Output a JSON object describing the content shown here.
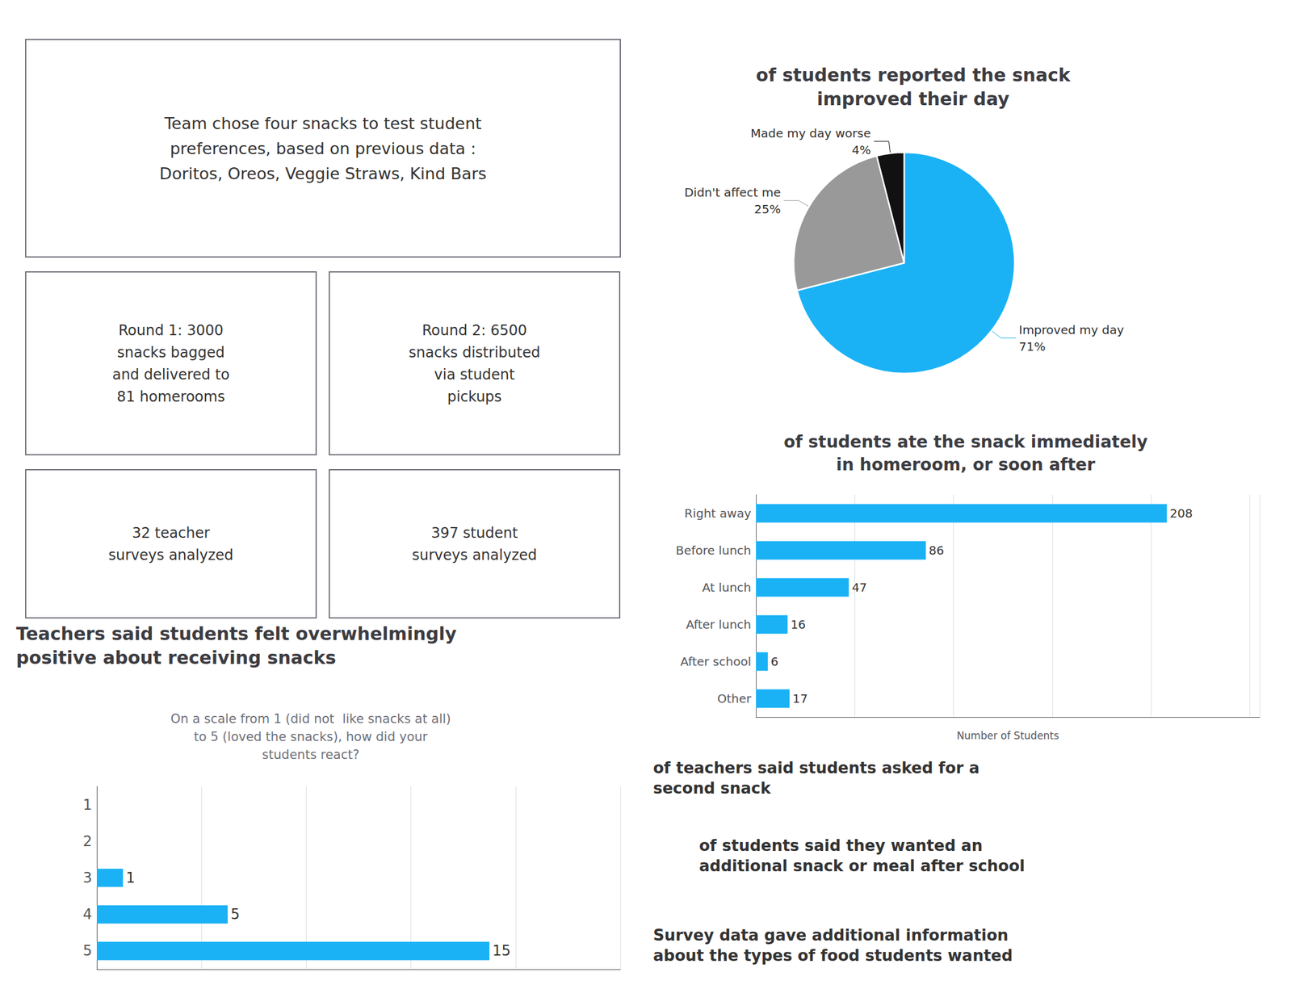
{
  "chart_data": [
    {
      "type": "bar",
      "orientation": "horizontal",
      "title": "Teachers said students felt overwhelmingly\npositive about receiving snacks",
      "subtitle": "On a scale from 1 (did not  like snacks at all)\nto 5 (loved the snacks), how did your\nstudents react?",
      "categories": [
        "5",
        "4",
        "3",
        "2",
        "1"
      ],
      "values": [
        15,
        5,
        1,
        0,
        0
      ],
      "value_labels": [
        "15",
        "5",
        "1",
        null,
        null
      ],
      "data_labels": true,
      "color": "#1ab2f5",
      "xlim": [
        0,
        20
      ],
      "xticks": [
        0,
        4,
        8,
        12,
        16,
        20
      ],
      "grid": true,
      "tick_labels": "y",
      "annotations": [
        "Team chose four snacks to test student\npreferences, based on previous data :\nDoritos, Oreos, Veggie Straws, Kind Bars",
        "Round 1: 3000\nsnacks bagged\nand delivered to\n81 homerooms",
        "Round 2: 6500\nsnacks distributed\nvia student\npickups",
        "32 teacher\nsurveys analyzed",
        "397 student\nsurveys analyzed"
      ]
    },
    {
      "type": "pie",
      "title": "of students reported the snack\nimproved their day",
      "categories": [
        "Improved my day",
        "Didn't affect me",
        "Made my day worse"
      ],
      "values": [
        71,
        25,
        4
      ],
      "value_labels": [
        "71%",
        "25%",
        "4%"
      ],
      "data_labels": true,
      "colors": [
        "#1ab2f5",
        "#999999",
        "#111111"
      ]
    },
    {
      "type": "bar",
      "orientation": "horizontal",
      "title": "of students ate the snack immediately\nin homeroom, or soon after",
      "xlabel": "Number of Students",
      "categories": [
        "Right away",
        "Before lunch",
        "At lunch",
        "After lunch",
        "After school",
        "Other"
      ],
      "values": [
        208,
        86,
        47,
        16,
        6,
        17
      ],
      "data_labels": true,
      "color": "#1ab2f5",
      "xlim": [
        0,
        255
      ],
      "xticks": [
        0,
        50,
        100,
        150,
        200,
        250
      ],
      "grid": true,
      "tick_labels": "y",
      "annotations": [
        "of teachers said students asked for a\nsecond snack",
        "of students said they wanted an\nadditional snack or meal after school",
        "Survey data gave additional information\nabout the types of food students wanted"
      ]
    }
  ]
}
